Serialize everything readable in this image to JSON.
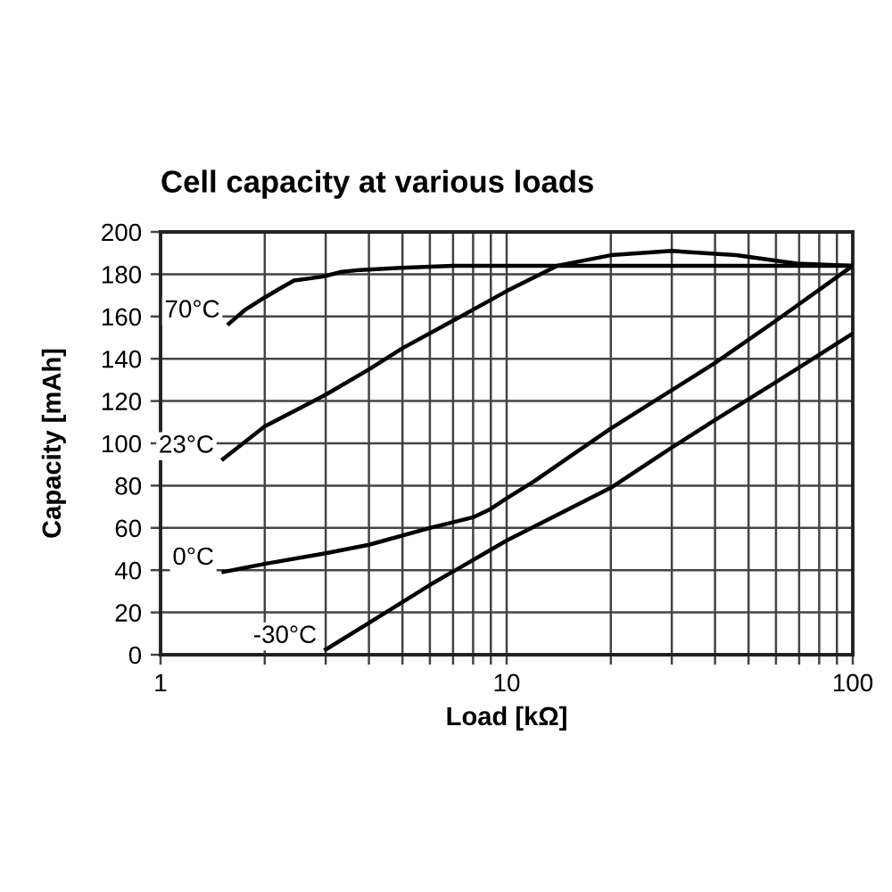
{
  "chart_data": {
    "type": "line",
    "title": "Cell capacity at various loads",
    "xlabel": "Load [kΩ]",
    "ylabel": "Capacity [mAh]",
    "log": "x",
    "grid": true,
    "xlim": [
      1,
      100
    ],
    "ylim": [
      0,
      200
    ],
    "xticks": [
      1,
      {
        "value": 2,
        "label": null
      },
      {
        "value": 3,
        "label": null
      },
      {
        "value": 4,
        "label": null
      },
      {
        "value": 5,
        "label": null
      },
      {
        "value": 6,
        "label": null
      },
      {
        "value": 7,
        "label": null
      },
      {
        "value": 8,
        "label": null
      },
      {
        "value": 9,
        "label": null
      },
      10,
      {
        "value": 20,
        "label": null
      },
      {
        "value": 30,
        "label": null
      },
      {
        "value": 40,
        "label": null
      },
      {
        "value": 50,
        "label": null
      },
      {
        "value": 60,
        "label": null
      },
      {
        "value": 70,
        "label": null
      },
      {
        "value": 80,
        "label": null
      },
      {
        "value": 90,
        "label": null
      },
      100
    ],
    "yticks": [
      0,
      20,
      40,
      60,
      80,
      100,
      120,
      140,
      160,
      180,
      200
    ],
    "series": [
      {
        "name": "70°C",
        "color": "#000000",
        "x": [
          1.56,
          1.75,
          2,
          2.2,
          2.43,
          2.7,
          2.97,
          3.3,
          3.76,
          4.97,
          7,
          10,
          20,
          50,
          100
        ],
        "values": [
          156,
          163,
          169,
          173,
          177,
          178,
          179,
          181,
          182,
          183,
          184,
          184,
          184,
          184,
          184
        ]
      },
      {
        "name": "23°C",
        "color": "#000000",
        "x": [
          1.5,
          2,
          3,
          4,
          5,
          7,
          10,
          14,
          20,
          30,
          46,
          69,
          100
        ],
        "values": [
          92,
          108,
          123,
          135,
          145,
          158,
          172,
          184,
          189,
          191,
          189,
          185,
          184
        ]
      },
      {
        "name": "0°C",
        "color": "#000000",
        "x": [
          1.5,
          2,
          3,
          4,
          6,
          8,
          9,
          10,
          12,
          15,
          20,
          25,
          40,
          60,
          100
        ],
        "values": [
          39,
          43,
          48,
          52,
          60,
          65,
          69,
          74,
          82,
          93,
          107,
          117,
          138,
          158,
          184
        ]
      },
      {
        "name": "-30°C",
        "color": "#000000",
        "x": [
          2.97,
          4,
          6,
          10,
          20,
          30,
          40,
          60,
          100
        ],
        "values": [
          2,
          15,
          33,
          54,
          79,
          98,
          111,
          129,
          152
        ]
      }
    ]
  }
}
